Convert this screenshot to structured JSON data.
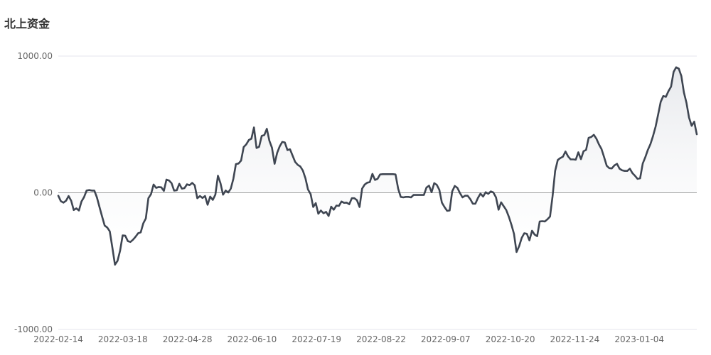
{
  "chart_data": {
    "type": "area",
    "title": "北上资金",
    "xlabel": "",
    "ylabel": "",
    "ylim": [
      -1000,
      1000
    ],
    "yticks": [
      "1000.00",
      "0.00",
      "-1000.00"
    ],
    "xticks": [
      "2022-02-14",
      "2022-03-18",
      "2022-04-28",
      "2022-06-10",
      "2022-07-19",
      "2022-08-22",
      "2022-09-07",
      "2022-10-20",
      "2022-11-24",
      "2023-01-04"
    ],
    "grid": true,
    "legend": "none",
    "colors": {
      "line": "#3f4652",
      "fill_top": "#e4e6ea",
      "axis": "#888888",
      "grid": "#e6e6ee"
    },
    "series": [
      {
        "values": [
          [
            0,
            -22
          ],
          [
            2,
            -62
          ],
          [
            4,
            -72
          ],
          [
            6,
            -58
          ],
          [
            8,
            -24
          ],
          [
            10,
            -58
          ],
          [
            12,
            -126
          ],
          [
            14,
            -114
          ],
          [
            16,
            -130
          ],
          [
            18,
            -64
          ],
          [
            20,
            -32
          ],
          [
            22,
            16
          ],
          [
            24,
            20
          ],
          [
            26,
            16
          ],
          [
            28,
            16
          ],
          [
            30,
            -34
          ],
          [
            32,
            -104
          ],
          [
            34,
            -174
          ],
          [
            36,
            -240
          ],
          [
            38,
            -254
          ],
          [
            40,
            -282
          ],
          [
            42,
            -400
          ],
          [
            44,
            -526
          ],
          [
            46,
            -498
          ],
          [
            48,
            -424
          ],
          [
            50,
            -312
          ],
          [
            52,
            -314
          ],
          [
            54,
            -354
          ],
          [
            56,
            -360
          ],
          [
            58,
            -344
          ],
          [
            60,
            -322
          ],
          [
            62,
            -296
          ],
          [
            64,
            -290
          ],
          [
            66,
            -224
          ],
          [
            68,
            -188
          ],
          [
            70,
            -40
          ],
          [
            72,
            -10
          ],
          [
            74,
            60
          ],
          [
            76,
            36
          ],
          [
            78,
            42
          ],
          [
            80,
            40
          ],
          [
            82,
            14
          ],
          [
            84,
            96
          ],
          [
            86,
            90
          ],
          [
            88,
            70
          ],
          [
            90,
            16
          ],
          [
            92,
            18
          ],
          [
            94,
            66
          ],
          [
            96,
            30
          ],
          [
            98,
            34
          ],
          [
            100,
            62
          ],
          [
            102,
            56
          ],
          [
            104,
            72
          ],
          [
            106,
            54
          ],
          [
            108,
            -40
          ],
          [
            110,
            -24
          ],
          [
            112,
            -38
          ],
          [
            114,
            -24
          ],
          [
            116,
            -88
          ],
          [
            118,
            -28
          ],
          [
            120,
            -52
          ],
          [
            122,
            -14
          ],
          [
            124,
            124
          ],
          [
            126,
            70
          ],
          [
            128,
            -14
          ],
          [
            130,
            16
          ],
          [
            132,
            2
          ],
          [
            134,
            30
          ],
          [
            136,
            102
          ],
          [
            138,
            210
          ],
          [
            140,
            214
          ],
          [
            142,
            236
          ],
          [
            144,
            334
          ],
          [
            146,
            354
          ],
          [
            148,
            386
          ],
          [
            150,
            396
          ],
          [
            152,
            478
          ],
          [
            154,
            328
          ],
          [
            156,
            336
          ],
          [
            158,
            416
          ],
          [
            160,
            422
          ],
          [
            162,
            468
          ],
          [
            164,
            380
          ],
          [
            166,
            330
          ],
          [
            168,
            212
          ],
          [
            170,
            292
          ],
          [
            172,
            340
          ],
          [
            174,
            372
          ],
          [
            176,
            368
          ],
          [
            178,
            312
          ],
          [
            180,
            318
          ],
          [
            182,
            272
          ],
          [
            184,
            226
          ],
          [
            186,
            204
          ],
          [
            188,
            192
          ],
          [
            190,
            162
          ],
          [
            192,
            106
          ],
          [
            194,
            24
          ],
          [
            196,
            -10
          ],
          [
            198,
            -104
          ],
          [
            200,
            -76
          ],
          [
            202,
            -154
          ],
          [
            204,
            -130
          ],
          [
            206,
            -150
          ],
          [
            208,
            -140
          ],
          [
            210,
            -170
          ],
          [
            212,
            -102
          ],
          [
            214,
            -124
          ],
          [
            216,
            -94
          ],
          [
            218,
            -96
          ],
          [
            220,
            -64
          ],
          [
            222,
            -74
          ],
          [
            224,
            -72
          ],
          [
            226,
            -84
          ],
          [
            228,
            -40
          ],
          [
            230,
            -40
          ],
          [
            232,
            -54
          ],
          [
            234,
            -104
          ],
          [
            236,
            30
          ],
          [
            238,
            60
          ],
          [
            240,
            74
          ],
          [
            242,
            78
          ],
          [
            244,
            138
          ],
          [
            246,
            94
          ],
          [
            248,
            102
          ],
          [
            250,
            134
          ],
          [
            252,
            136
          ],
          [
            254,
            136
          ],
          [
            256,
            136
          ],
          [
            258,
            136
          ],
          [
            260,
            136
          ],
          [
            262,
            134
          ],
          [
            264,
            30
          ],
          [
            266,
            -30
          ],
          [
            268,
            -34
          ],
          [
            270,
            -30
          ],
          [
            272,
            -30
          ],
          [
            274,
            -34
          ],
          [
            276,
            -16
          ],
          [
            278,
            -16
          ],
          [
            280,
            -16
          ],
          [
            282,
            -16
          ],
          [
            284,
            -16
          ],
          [
            286,
            38
          ],
          [
            288,
            52
          ],
          [
            290,
            4
          ],
          [
            292,
            70
          ],
          [
            294,
            58
          ],
          [
            296,
            22
          ],
          [
            298,
            -72
          ],
          [
            300,
            -104
          ],
          [
            302,
            -132
          ],
          [
            304,
            -130
          ],
          [
            306,
            10
          ],
          [
            308,
            50
          ],
          [
            310,
            36
          ],
          [
            312,
            -2
          ],
          [
            314,
            -34
          ],
          [
            316,
            -22
          ],
          [
            318,
            -22
          ],
          [
            320,
            -46
          ],
          [
            322,
            -80
          ],
          [
            324,
            -80
          ],
          [
            326,
            -38
          ],
          [
            328,
            -6
          ],
          [
            330,
            -28
          ],
          [
            332,
            4
          ],
          [
            334,
            -8
          ],
          [
            336,
            10
          ],
          [
            338,
            2
          ],
          [
            340,
            -34
          ],
          [
            342,
            -124
          ],
          [
            344,
            -70
          ],
          [
            346,
            -98
          ],
          [
            348,
            -126
          ],
          [
            350,
            -176
          ],
          [
            352,
            -234
          ],
          [
            354,
            -300
          ],
          [
            356,
            -434
          ],
          [
            358,
            -390
          ],
          [
            360,
            -330
          ],
          [
            362,
            -296
          ],
          [
            364,
            -300
          ],
          [
            366,
            -348
          ],
          [
            368,
            -278
          ],
          [
            370,
            -306
          ],
          [
            372,
            -318
          ],
          [
            374,
            -210
          ],
          [
            376,
            -208
          ],
          [
            378,
            -210
          ],
          [
            380,
            -194
          ],
          [
            382,
            -174
          ],
          [
            384,
            -24
          ],
          [
            386,
            160
          ],
          [
            388,
            240
          ],
          [
            390,
            254
          ],
          [
            392,
            264
          ],
          [
            394,
            302
          ],
          [
            396,
            266
          ],
          [
            398,
            244
          ],
          [
            400,
            244
          ],
          [
            402,
            242
          ],
          [
            404,
            296
          ],
          [
            406,
            246
          ],
          [
            408,
            304
          ],
          [
            410,
            314
          ],
          [
            412,
            402
          ],
          [
            414,
            408
          ],
          [
            416,
            424
          ],
          [
            418,
            396
          ],
          [
            420,
            354
          ],
          [
            422,
            320
          ],
          [
            424,
            262
          ],
          [
            426,
            198
          ],
          [
            428,
            180
          ],
          [
            430,
            178
          ],
          [
            432,
            200
          ],
          [
            434,
            212
          ],
          [
            436,
            176
          ],
          [
            438,
            164
          ],
          [
            440,
            160
          ],
          [
            442,
            160
          ],
          [
            444,
            176
          ],
          [
            446,
            144
          ],
          [
            448,
            124
          ],
          [
            450,
            102
          ],
          [
            452,
            106
          ],
          [
            454,
            214
          ],
          [
            456,
            260
          ],
          [
            458,
            314
          ],
          [
            460,
            356
          ],
          [
            462,
            414
          ],
          [
            464,
            484
          ],
          [
            466,
            574
          ],
          [
            468,
            666
          ],
          [
            470,
            708
          ],
          [
            472,
            702
          ],
          [
            474,
            744
          ],
          [
            476,
            776
          ],
          [
            478,
            884
          ],
          [
            480,
            918
          ],
          [
            482,
            908
          ],
          [
            484,
            854
          ],
          [
            486,
            734
          ],
          [
            488,
            658
          ],
          [
            490,
            550
          ],
          [
            492,
            490
          ],
          [
            494,
            520
          ],
          [
            496,
            428
          ]
        ]
      }
    ]
  }
}
